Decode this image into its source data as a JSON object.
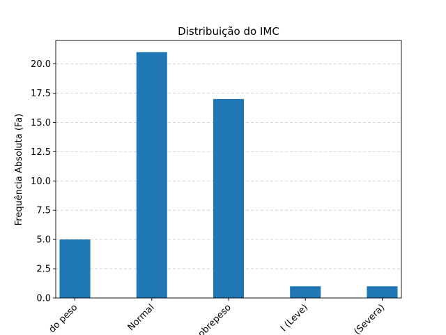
{
  "chart_data": {
    "type": "bar",
    "title": "Distribuição do IMC",
    "xlabel": "",
    "ylabel": "Frequência Absoluta (Fa)",
    "categories": [
      "do peso",
      "Normal",
      "obrepeso",
      "I (Leve)",
      "(Severa)"
    ],
    "values": [
      5,
      21,
      17,
      1,
      1
    ],
    "ylim": [
      0,
      22
    ],
    "yticks": [
      0.0,
      2.5,
      5.0,
      7.5,
      10.0,
      12.5,
      15.0,
      17.5,
      20.0
    ],
    "ytick_labels": [
      "0.0",
      "2.5",
      "5.0",
      "7.5",
      "10.0",
      "12.5",
      "15.0",
      "17.5",
      "20.0"
    ],
    "bar_color": "#1f77b4",
    "grid": {
      "y": true,
      "x": false,
      "style": "dashed"
    },
    "legend": "none"
  }
}
